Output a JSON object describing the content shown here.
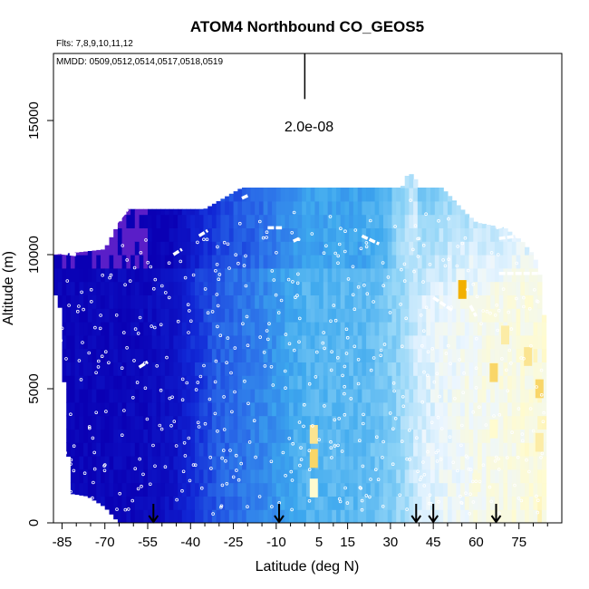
{
  "chart_data": {
    "type": "heatmap",
    "title": "ATOM4 Northbound CO_GEOS5",
    "flights_note": "Flts: 7,8,9,10,11,12",
    "dates_note": "MMDD: 0509,0512,0514,0517,0518,0519",
    "xlabel": "Latitude (deg N)",
    "ylabel": "Altitude (m)",
    "xlim": [
      -88,
      90
    ],
    "ylim": [
      0,
      17500
    ],
    "x_ticks": [
      -85,
      -70,
      -55,
      -40,
      -25,
      -10,
      5,
      15,
      30,
      45,
      60,
      75
    ],
    "x_minor_ticks": [
      -80,
      -75,
      -65,
      -60,
      -50,
      -45,
      -35,
      -30,
      -20,
      -15,
      -5,
      0,
      10,
      20,
      25,
      35,
      40,
      50,
      55,
      65,
      70,
      80,
      85
    ],
    "y_ticks": [
      0,
      5000,
      10000,
      15000
    ],
    "scale_bar": {
      "label": "2.0e-08",
      "latitude": 0,
      "altitude_range": [
        15800,
        17500
      ]
    },
    "profile_arrows_latitude": [
      -53,
      -9,
      39,
      45,
      67
    ],
    "top_altitude_profile": [
      [
        -88,
        10000
      ],
      [
        -78,
        10100
      ],
      [
        -70,
        10200
      ],
      [
        -65,
        11200
      ],
      [
        -62,
        11700
      ],
      [
        -55,
        11700
      ],
      [
        -45,
        11700
      ],
      [
        -35,
        11700
      ],
      [
        -22,
        12500
      ],
      [
        -10,
        12500
      ],
      [
        5,
        12500
      ],
      [
        15,
        12500
      ],
      [
        25,
        12500
      ],
      [
        34,
        12500
      ],
      [
        36,
        13000
      ],
      [
        38,
        13000
      ],
      [
        40,
        12500
      ],
      [
        48,
        12500
      ],
      [
        55,
        11700
      ],
      [
        60,
        11200
      ],
      [
        70,
        11000
      ],
      [
        76,
        10500
      ],
      [
        80,
        10000
      ],
      [
        82,
        9500
      ],
      [
        84,
        7500
      ],
      [
        85,
        3000
      ],
      [
        84,
        0
      ]
    ],
    "low_edge_profile": [
      [
        -86,
        8500
      ],
      [
        -82,
        1100
      ],
      [
        -76,
        1000
      ],
      [
        -70,
        600
      ],
      [
        -65,
        0
      ]
    ],
    "colormap": {
      "low_color": "#0000c8",
      "mid_color": "#3da8ee",
      "high_color": "#fffff0",
      "peak_color": "#f2b000",
      "stops": [
        [
          0.0,
          "#0a00b4"
        ],
        [
          0.2,
          "#1128d6"
        ],
        [
          0.35,
          "#2a6ce8"
        ],
        [
          0.5,
          "#3da8ee"
        ],
        [
          0.65,
          "#8fd4f7"
        ],
        [
          0.8,
          "#ecf6ff"
        ],
        [
          0.9,
          "#fffbcf"
        ],
        [
          1.0,
          "#f2b000"
        ]
      ]
    },
    "latitude_gradient": [
      [
        -88,
        0.02
      ],
      [
        -70,
        0.03
      ],
      [
        -55,
        0.05
      ],
      [
        -45,
        0.1
      ],
      [
        -38,
        0.22
      ],
      [
        -30,
        0.32
      ],
      [
        -20,
        0.38
      ],
      [
        -12,
        0.44
      ],
      [
        -5,
        0.5
      ],
      [
        0,
        0.54
      ],
      [
        10,
        0.55
      ],
      [
        20,
        0.56
      ],
      [
        28,
        0.6
      ],
      [
        35,
        0.68
      ],
      [
        40,
        0.76
      ],
      [
        48,
        0.8
      ],
      [
        60,
        0.84
      ],
      [
        75,
        0.86
      ],
      [
        85,
        0.88
      ]
    ],
    "stratospheric_purple_region": {
      "latitude_range": [
        -88,
        -55
      ],
      "altitude_range": [
        9500,
        12000
      ],
      "color": "#5a1ec8"
    },
    "hotspots": [
      {
        "latitude": 3,
        "altitude": 3300,
        "value": 0.93
      },
      {
        "latitude": 3,
        "altitude": 2400,
        "value": 0.95
      },
      {
        "latitude": 3,
        "altitude": 1300,
        "value": 0.9
      },
      {
        "latitude": 55,
        "altitude": 8700,
        "value": 1.0
      },
      {
        "latitude": 66,
        "altitude": 5600,
        "value": 0.95
      },
      {
        "latitude": 70,
        "altitude": 7000,
        "value": 0.92
      },
      {
        "latitude": 78,
        "altitude": 6200,
        "value": 0.93
      },
      {
        "latitude": 82,
        "altitude": 5000,
        "value": 0.95
      },
      {
        "latitude": 82,
        "altitude": 3000,
        "value": 0.92
      },
      {
        "latitude": 66,
        "altitude": 3500,
        "value": 0.9
      },
      {
        "latitude": 60,
        "altitude": 1500,
        "value": 0.88
      }
    ],
    "flight_track_segments": [
      [
        [
          -88,
          10100
        ],
        [
          -80,
          10000
        ]
      ],
      [
        [
          -77,
          10300
        ],
        [
          -72,
          10500
        ]
      ],
      [
        [
          -70,
          10700
        ],
        [
          -62,
          11700
        ]
      ],
      [
        [
          -46,
          10000
        ],
        [
          -43,
          10200
        ]
      ],
      [
        [
          -37,
          10700
        ],
        [
          -34,
          10900
        ]
      ],
      [
        [
          -22,
          12100
        ],
        [
          -20,
          12200
        ]
      ],
      [
        [
          -13,
          11000
        ],
        [
          -8,
          11000
        ]
      ],
      [
        [
          -4,
          10500
        ],
        [
          -2,
          10600
        ]
      ],
      [
        [
          20,
          10700
        ],
        [
          26,
          10400
        ]
      ],
      [
        [
          45,
          8400
        ],
        [
          52,
          7900
        ]
      ],
      [
        [
          58,
          8100
        ],
        [
          60,
          7700
        ]
      ],
      [
        [
          67,
          11000
        ],
        [
          75,
          11200
        ]
      ],
      [
        [
          68,
          10600
        ],
        [
          75,
          10700
        ]
      ],
      [
        [
          68,
          9300
        ],
        [
          82,
          9300
        ]
      ],
      [
        [
          -58,
          5800
        ],
        [
          -55,
          6000
        ]
      ]
    ]
  }
}
